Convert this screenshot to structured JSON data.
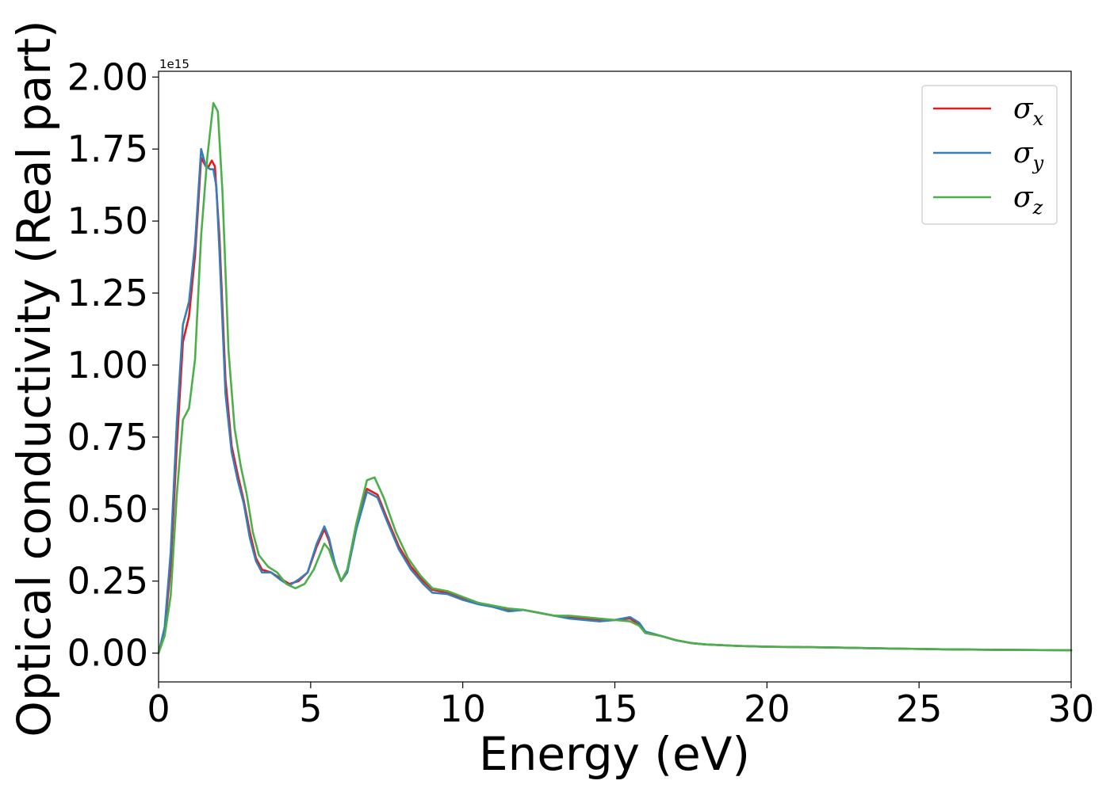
{
  "chart_data": {
    "type": "line",
    "xlabel": "Energy (eV)",
    "ylabel": "Optical conductivity (Real part)",
    "y_offset_label": "1e15",
    "xlim": [
      0,
      30
    ],
    "ylim": [
      -0.1,
      2.02
    ],
    "x_ticks": [
      0,
      5,
      10,
      15,
      20,
      25,
      30
    ],
    "x_tick_labels": [
      "0",
      "5",
      "10",
      "15",
      "20",
      "25",
      "30"
    ],
    "y_ticks": [
      0.0,
      0.25,
      0.5,
      0.75,
      1.0,
      1.25,
      1.5,
      1.75,
      2.0
    ],
    "y_tick_labels": [
      "0.00",
      "0.25",
      "0.50",
      "0.75",
      "1.00",
      "1.25",
      "1.50",
      "1.75",
      "2.00"
    ],
    "grid": false,
    "legend_position": "top-right",
    "series": [
      {
        "name": "σx",
        "symbol": "σ",
        "subscript": "x",
        "color": "#e41a1c",
        "points": [
          [
            0,
            0
          ],
          [
            0.2,
            0.08
          ],
          [
            0.4,
            0.3
          ],
          [
            0.6,
            0.72
          ],
          [
            0.8,
            1.08
          ],
          [
            1.0,
            1.17
          ],
          [
            1.2,
            1.38
          ],
          [
            1.4,
            1.72
          ],
          [
            1.55,
            1.69
          ],
          [
            1.65,
            1.69
          ],
          [
            1.75,
            1.71
          ],
          [
            1.85,
            1.69
          ],
          [
            2.0,
            1.45
          ],
          [
            2.2,
            0.95
          ],
          [
            2.4,
            0.72
          ],
          [
            2.6,
            0.62
          ],
          [
            2.8,
            0.53
          ],
          [
            3.0,
            0.42
          ],
          [
            3.2,
            0.33
          ],
          [
            3.4,
            0.29
          ],
          [
            3.7,
            0.28
          ],
          [
            4.0,
            0.26
          ],
          [
            4.3,
            0.24
          ],
          [
            4.6,
            0.25
          ],
          [
            4.9,
            0.28
          ],
          [
            5.2,
            0.37
          ],
          [
            5.45,
            0.43
          ],
          [
            5.6,
            0.39
          ],
          [
            5.8,
            0.31
          ],
          [
            6.0,
            0.25
          ],
          [
            6.2,
            0.28
          ],
          [
            6.5,
            0.44
          ],
          [
            6.85,
            0.57
          ],
          [
            7.2,
            0.55
          ],
          [
            7.5,
            0.47
          ],
          [
            7.9,
            0.37
          ],
          [
            8.3,
            0.3
          ],
          [
            8.7,
            0.25
          ],
          [
            9.0,
            0.22
          ],
          [
            9.5,
            0.21
          ],
          [
            10.0,
            0.19
          ],
          [
            10.5,
            0.175
          ],
          [
            11.0,
            0.16
          ],
          [
            11.5,
            0.15
          ],
          [
            12.0,
            0.15
          ],
          [
            12.5,
            0.14
          ],
          [
            13.0,
            0.13
          ],
          [
            13.5,
            0.125
          ],
          [
            14.0,
            0.12
          ],
          [
            14.5,
            0.115
          ],
          [
            15.0,
            0.115
          ],
          [
            15.5,
            0.12
          ],
          [
            15.8,
            0.1
          ],
          [
            16.0,
            0.07
          ],
          [
            16.5,
            0.06
          ],
          [
            17.0,
            0.045
          ],
          [
            17.5,
            0.035
          ],
          [
            18.0,
            0.03
          ],
          [
            19.0,
            0.025
          ],
          [
            20.0,
            0.022
          ],
          [
            22.0,
            0.02
          ],
          [
            24.0,
            0.016
          ],
          [
            26.0,
            0.013
          ],
          [
            28.0,
            0.011
          ],
          [
            30.0,
            0.01
          ]
        ]
      },
      {
        "name": "σy",
        "symbol": "σ",
        "subscript": "y",
        "color": "#377eb8",
        "points": [
          [
            0,
            0
          ],
          [
            0.2,
            0.09
          ],
          [
            0.4,
            0.35
          ],
          [
            0.6,
            0.8
          ],
          [
            0.8,
            1.14
          ],
          [
            1.0,
            1.22
          ],
          [
            1.2,
            1.42
          ],
          [
            1.4,
            1.75
          ],
          [
            1.55,
            1.69
          ],
          [
            1.7,
            1.68
          ],
          [
            1.8,
            1.68
          ],
          [
            1.9,
            1.62
          ],
          [
            2.0,
            1.4
          ],
          [
            2.2,
            0.9
          ],
          [
            2.4,
            0.7
          ],
          [
            2.6,
            0.6
          ],
          [
            2.8,
            0.52
          ],
          [
            3.0,
            0.4
          ],
          [
            3.2,
            0.32
          ],
          [
            3.4,
            0.28
          ],
          [
            3.7,
            0.28
          ],
          [
            4.0,
            0.255
          ],
          [
            4.3,
            0.235
          ],
          [
            4.6,
            0.255
          ],
          [
            4.9,
            0.28
          ],
          [
            5.2,
            0.38
          ],
          [
            5.45,
            0.44
          ],
          [
            5.6,
            0.4
          ],
          [
            5.8,
            0.31
          ],
          [
            6.0,
            0.25
          ],
          [
            6.2,
            0.28
          ],
          [
            6.5,
            0.43
          ],
          [
            6.85,
            0.56
          ],
          [
            7.2,
            0.54
          ],
          [
            7.5,
            0.46
          ],
          [
            7.9,
            0.36
          ],
          [
            8.3,
            0.29
          ],
          [
            8.7,
            0.24
          ],
          [
            9.0,
            0.21
          ],
          [
            9.5,
            0.205
          ],
          [
            10.0,
            0.185
          ],
          [
            10.5,
            0.17
          ],
          [
            11.0,
            0.16
          ],
          [
            11.5,
            0.145
          ],
          [
            12.0,
            0.15
          ],
          [
            12.5,
            0.14
          ],
          [
            13.0,
            0.13
          ],
          [
            13.5,
            0.12
          ],
          [
            14.0,
            0.115
          ],
          [
            14.5,
            0.11
          ],
          [
            15.0,
            0.115
          ],
          [
            15.5,
            0.125
          ],
          [
            15.8,
            0.105
          ],
          [
            16.0,
            0.075
          ],
          [
            16.5,
            0.06
          ],
          [
            17.0,
            0.045
          ],
          [
            17.5,
            0.035
          ],
          [
            18.0,
            0.03
          ],
          [
            19.0,
            0.025
          ],
          [
            20.0,
            0.022
          ],
          [
            22.0,
            0.02
          ],
          [
            24.0,
            0.016
          ],
          [
            26.0,
            0.013
          ],
          [
            28.0,
            0.011
          ],
          [
            30.0,
            0.01
          ]
        ]
      },
      {
        "name": "σz",
        "symbol": "σ",
        "subscript": "z",
        "color": "#4daf4a",
        "points": [
          [
            0,
            0
          ],
          [
            0.2,
            0.06
          ],
          [
            0.4,
            0.2
          ],
          [
            0.6,
            0.55
          ],
          [
            0.8,
            0.81
          ],
          [
            1.0,
            0.85
          ],
          [
            1.2,
            1.02
          ],
          [
            1.4,
            1.45
          ],
          [
            1.6,
            1.72
          ],
          [
            1.8,
            1.91
          ],
          [
            1.95,
            1.88
          ],
          [
            2.1,
            1.6
          ],
          [
            2.3,
            1.05
          ],
          [
            2.5,
            0.78
          ],
          [
            2.7,
            0.65
          ],
          [
            2.9,
            0.55
          ],
          [
            3.1,
            0.42
          ],
          [
            3.3,
            0.34
          ],
          [
            3.6,
            0.3
          ],
          [
            3.9,
            0.28
          ],
          [
            4.2,
            0.24
          ],
          [
            4.5,
            0.225
          ],
          [
            4.8,
            0.24
          ],
          [
            5.1,
            0.29
          ],
          [
            5.45,
            0.38
          ],
          [
            5.6,
            0.36
          ],
          [
            5.8,
            0.3
          ],
          [
            6.0,
            0.25
          ],
          [
            6.2,
            0.29
          ],
          [
            6.5,
            0.45
          ],
          [
            6.85,
            0.6
          ],
          [
            7.1,
            0.61
          ],
          [
            7.4,
            0.54
          ],
          [
            7.8,
            0.42
          ],
          [
            8.2,
            0.33
          ],
          [
            8.6,
            0.27
          ],
          [
            9.0,
            0.225
          ],
          [
            9.5,
            0.215
          ],
          [
            10.0,
            0.195
          ],
          [
            10.5,
            0.175
          ],
          [
            11.0,
            0.165
          ],
          [
            11.5,
            0.155
          ],
          [
            12.0,
            0.15
          ],
          [
            12.5,
            0.14
          ],
          [
            13.0,
            0.13
          ],
          [
            13.5,
            0.13
          ],
          [
            14.0,
            0.125
          ],
          [
            14.5,
            0.12
          ],
          [
            15.0,
            0.115
          ],
          [
            15.5,
            0.11
          ],
          [
            15.8,
            0.095
          ],
          [
            16.0,
            0.07
          ],
          [
            16.5,
            0.06
          ],
          [
            17.0,
            0.045
          ],
          [
            17.5,
            0.035
          ],
          [
            18.0,
            0.03
          ],
          [
            19.0,
            0.025
          ],
          [
            20.0,
            0.022
          ],
          [
            22.0,
            0.02
          ],
          [
            24.0,
            0.016
          ],
          [
            26.0,
            0.013
          ],
          [
            28.0,
            0.011
          ],
          [
            30.0,
            0.01
          ]
        ]
      }
    ]
  }
}
